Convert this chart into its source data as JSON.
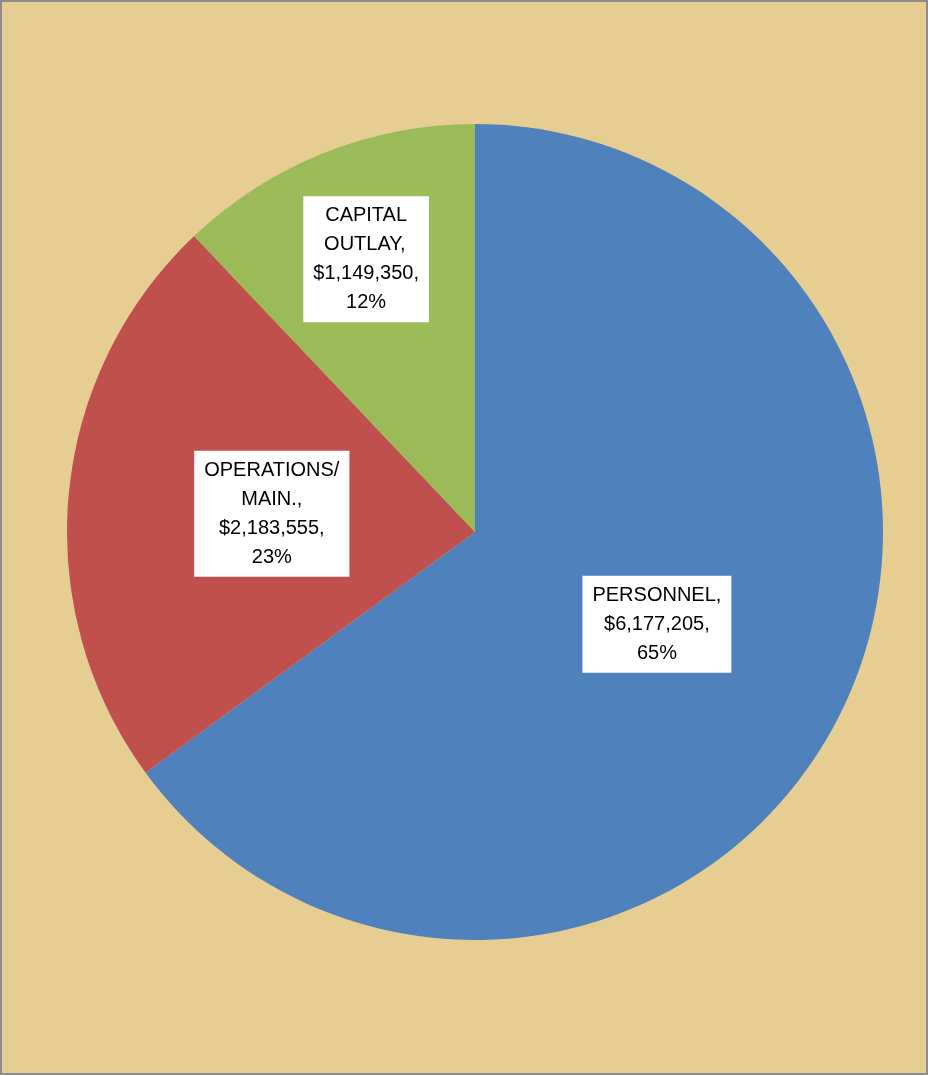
{
  "chart_data": {
    "type": "pie",
    "categories": [
      "PERSONNEL",
      "OPERATIONS/ MAIN.",
      "CAPITAL OUTLAY"
    ],
    "values": [
      6177205,
      2183555,
      1149350
    ],
    "colors": [
      "#4f81bd",
      "#c0504d",
      "#9bbb59"
    ],
    "value_labels": [
      ", $6,177,205, 65%",
      ", $2,183,555, 23%",
      ", $1,149,350, 12%"
    ],
    "legend": false
  }
}
